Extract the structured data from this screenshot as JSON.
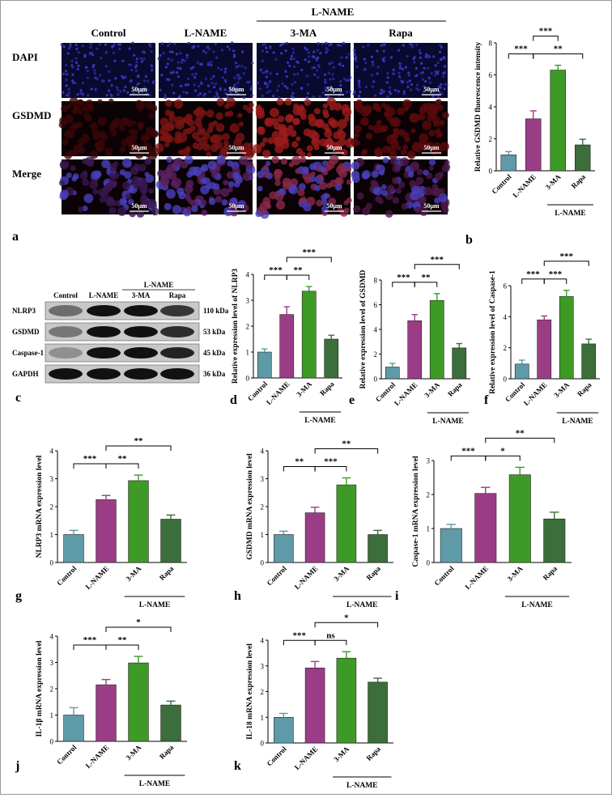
{
  "colors": {
    "Control": "#5f9aa8",
    "L-NAME": "#9b3d86",
    "3-MA": "#3d9a26",
    "Rapa": "#3b6e3a"
  },
  "panel_a": {
    "letter": "a",
    "group_label": "L-NAME",
    "columns": [
      "Control",
      "L-NAME",
      "3-MA",
      "Rapa"
    ],
    "rows": [
      "DAPI",
      "GSDMD",
      "Merge"
    ],
    "scale_bar": "50μm"
  },
  "panel_c": {
    "letter": "c",
    "columns": [
      "Control",
      "L-NAME",
      "3-MA",
      "Rapa"
    ],
    "group_label": "L-NAME",
    "bands": [
      {
        "label": "NLRP3",
        "kda": "110 kDa"
      },
      {
        "label": "GSDMD",
        "kda": "53 kDa"
      },
      {
        "label": "Caspase-1",
        "kda": "45 kDa"
      },
      {
        "label": "GAPDH",
        "kda": "36 kDa"
      }
    ]
  },
  "chart_data": [
    {
      "id": "b",
      "type": "bar",
      "letter": "b",
      "ylabel": "Relative GSDMD fluorescence intensity",
      "ylim": [
        0,
        8
      ],
      "yticks": [
        0,
        2,
        4,
        6,
        8
      ],
      "categories": [
        "Control",
        "L-NAME",
        "3-MA",
        "Rapa"
      ],
      "values": [
        1.0,
        3.25,
        6.3,
        1.62
      ],
      "errors": [
        0.2,
        0.5,
        0.3,
        0.35
      ],
      "group_label": "L-NAME",
      "sig": [
        {
          "from": 0,
          "to": 1,
          "label": "***",
          "level": 0
        },
        {
          "from": 1,
          "to": 3,
          "label": "**",
          "level": 0
        },
        {
          "from": 1,
          "to": 2,
          "label": "***",
          "level": 1
        }
      ]
    },
    {
      "id": "d",
      "type": "bar",
      "letter": "d",
      "ylabel": "Relative expression level of NLRP3",
      "ylim": [
        0,
        4
      ],
      "yticks": [
        0,
        1,
        2,
        3,
        4
      ],
      "categories": [
        "Control",
        "L-NAME",
        "3-MA",
        "Rapa"
      ],
      "values": [
        1.0,
        2.45,
        3.35,
        1.5
      ],
      "errors": [
        0.12,
        0.3,
        0.18,
        0.15
      ],
      "group_label": "L-NAME",
      "sig": [
        {
          "from": 0,
          "to": 1,
          "label": "***",
          "level": 0
        },
        {
          "from": 1,
          "to": 2,
          "label": "**",
          "level": 0
        },
        {
          "from": 1,
          "to": 3,
          "label": "***",
          "level": 1
        }
      ]
    },
    {
      "id": "e",
      "type": "bar",
      "letter": "e",
      "ylabel": "Relative expression level of GSDMD",
      "ylim": [
        0,
        8
      ],
      "yticks": [
        0,
        2,
        4,
        6,
        8
      ],
      "categories": [
        "Control",
        "L-NAME",
        "3-MA",
        "Rapa"
      ],
      "values": [
        0.95,
        4.7,
        6.35,
        2.5
      ],
      "errors": [
        0.3,
        0.5,
        0.55,
        0.35
      ],
      "group_label": "L-NAME",
      "sig": [
        {
          "from": 0,
          "to": 1,
          "label": "***",
          "level": 0
        },
        {
          "from": 1,
          "to": 2,
          "label": "**",
          "level": 0
        },
        {
          "from": 1,
          "to": 3,
          "label": "***",
          "level": 1
        }
      ]
    },
    {
      "id": "f",
      "type": "bar",
      "letter": "f",
      "ylabel": "Relative expression level of Caspase-1",
      "ylim": [
        0,
        6
      ],
      "yticks": [
        0,
        2,
        4,
        6
      ],
      "categories": [
        "Control",
        "L-NAME",
        "3-MA",
        "Rapa"
      ],
      "values": [
        0.95,
        3.8,
        5.3,
        2.25
      ],
      "errors": [
        0.25,
        0.25,
        0.4,
        0.3
      ],
      "group_label": "L-NAME",
      "sig": [
        {
          "from": 0,
          "to": 1,
          "label": "***",
          "level": 0
        },
        {
          "from": 1,
          "to": 2,
          "label": "***",
          "level": 0
        },
        {
          "from": 1,
          "to": 3,
          "label": "***",
          "level": 1
        }
      ]
    },
    {
      "id": "g",
      "type": "bar",
      "letter": "g",
      "ylabel": "NLRP3 mRNA expression level",
      "ylim": [
        0,
        4
      ],
      "yticks": [
        0,
        1,
        2,
        3,
        4
      ],
      "categories": [
        "Control",
        "L-NAME",
        "3-MA",
        "Rapa"
      ],
      "values": [
        1.0,
        2.25,
        2.93,
        1.55
      ],
      "errors": [
        0.15,
        0.15,
        0.2,
        0.15
      ],
      "group_label": "L-NAME",
      "sig": [
        {
          "from": 0,
          "to": 1,
          "label": "***",
          "level": 0
        },
        {
          "from": 1,
          "to": 2,
          "label": "**",
          "level": 0
        },
        {
          "from": 1,
          "to": 3,
          "label": "**",
          "level": 1
        }
      ]
    },
    {
      "id": "h",
      "type": "bar",
      "letter": "h",
      "ylabel": "GSDMD mRNA expression level",
      "ylim": [
        0,
        4
      ],
      "yticks": [
        0,
        1,
        2,
        3,
        4
      ],
      "categories": [
        "Control",
        "L-NAME",
        "3-MA",
        "Rapa"
      ],
      "values": [
        1.0,
        1.78,
        2.78,
        1.0
      ],
      "errors": [
        0.12,
        0.2,
        0.25,
        0.15
      ],
      "group_label": "L-NAME",
      "sig": [
        {
          "from": 0,
          "to": 1,
          "label": "**",
          "level": 0
        },
        {
          "from": 1,
          "to": 2,
          "label": "***",
          "level": 0
        },
        {
          "from": 1,
          "to": 3,
          "label": "**",
          "level": 1
        }
      ]
    },
    {
      "id": "i",
      "type": "bar",
      "letter": "i",
      "ylabel": "Caspase-1 mRNA expression level",
      "ylim": [
        0,
        3
      ],
      "yticks": [
        0,
        1,
        2,
        3
      ],
      "categories": [
        "Control",
        "L-NAME",
        "3-MA",
        "Rapa"
      ],
      "values": [
        1.0,
        2.03,
        2.58,
        1.28
      ],
      "errors": [
        0.12,
        0.18,
        0.22,
        0.2
      ],
      "group_label": "L-NAME",
      "sig": [
        {
          "from": 0,
          "to": 1,
          "label": "***",
          "level": 0
        },
        {
          "from": 1,
          "to": 2,
          "label": "*",
          "level": 0
        },
        {
          "from": 1,
          "to": 3,
          "label": "**",
          "level": 1
        }
      ]
    },
    {
      "id": "j",
      "type": "bar",
      "letter": "j",
      "ylabel": "IL-1β mRNA expression level",
      "ylim": [
        0,
        4
      ],
      "yticks": [
        0,
        1,
        2,
        3,
        4
      ],
      "categories": [
        "Control",
        "L-NAME",
        "3-MA",
        "Rapa"
      ],
      "values": [
        1.0,
        2.15,
        2.98,
        1.38
      ],
      "errors": [
        0.28,
        0.2,
        0.25,
        0.15
      ],
      "group_label": "L-NAME",
      "sig": [
        {
          "from": 0,
          "to": 1,
          "label": "***",
          "level": 0
        },
        {
          "from": 1,
          "to": 2,
          "label": "**",
          "level": 0
        },
        {
          "from": 1,
          "to": 3,
          "label": "*",
          "level": 1
        }
      ]
    },
    {
      "id": "k",
      "type": "bar",
      "letter": "k",
      "ylabel": "IL-18 mRNA expression level",
      "ylim": [
        0,
        4
      ],
      "yticks": [
        0,
        1,
        2,
        3,
        4
      ],
      "categories": [
        "Control",
        "L-NAME",
        "3-MA",
        "Rapa"
      ],
      "values": [
        1.0,
        2.92,
        3.3,
        2.37
      ],
      "errors": [
        0.15,
        0.25,
        0.25,
        0.15
      ],
      "group_label": "L-NAME",
      "sig": [
        {
          "from": 0,
          "to": 1,
          "label": "***",
          "level": 0
        },
        {
          "from": 1,
          "to": 2,
          "label": "ns",
          "level": 0
        },
        {
          "from": 1,
          "to": 3,
          "label": "*",
          "level": 1
        }
      ]
    }
  ]
}
